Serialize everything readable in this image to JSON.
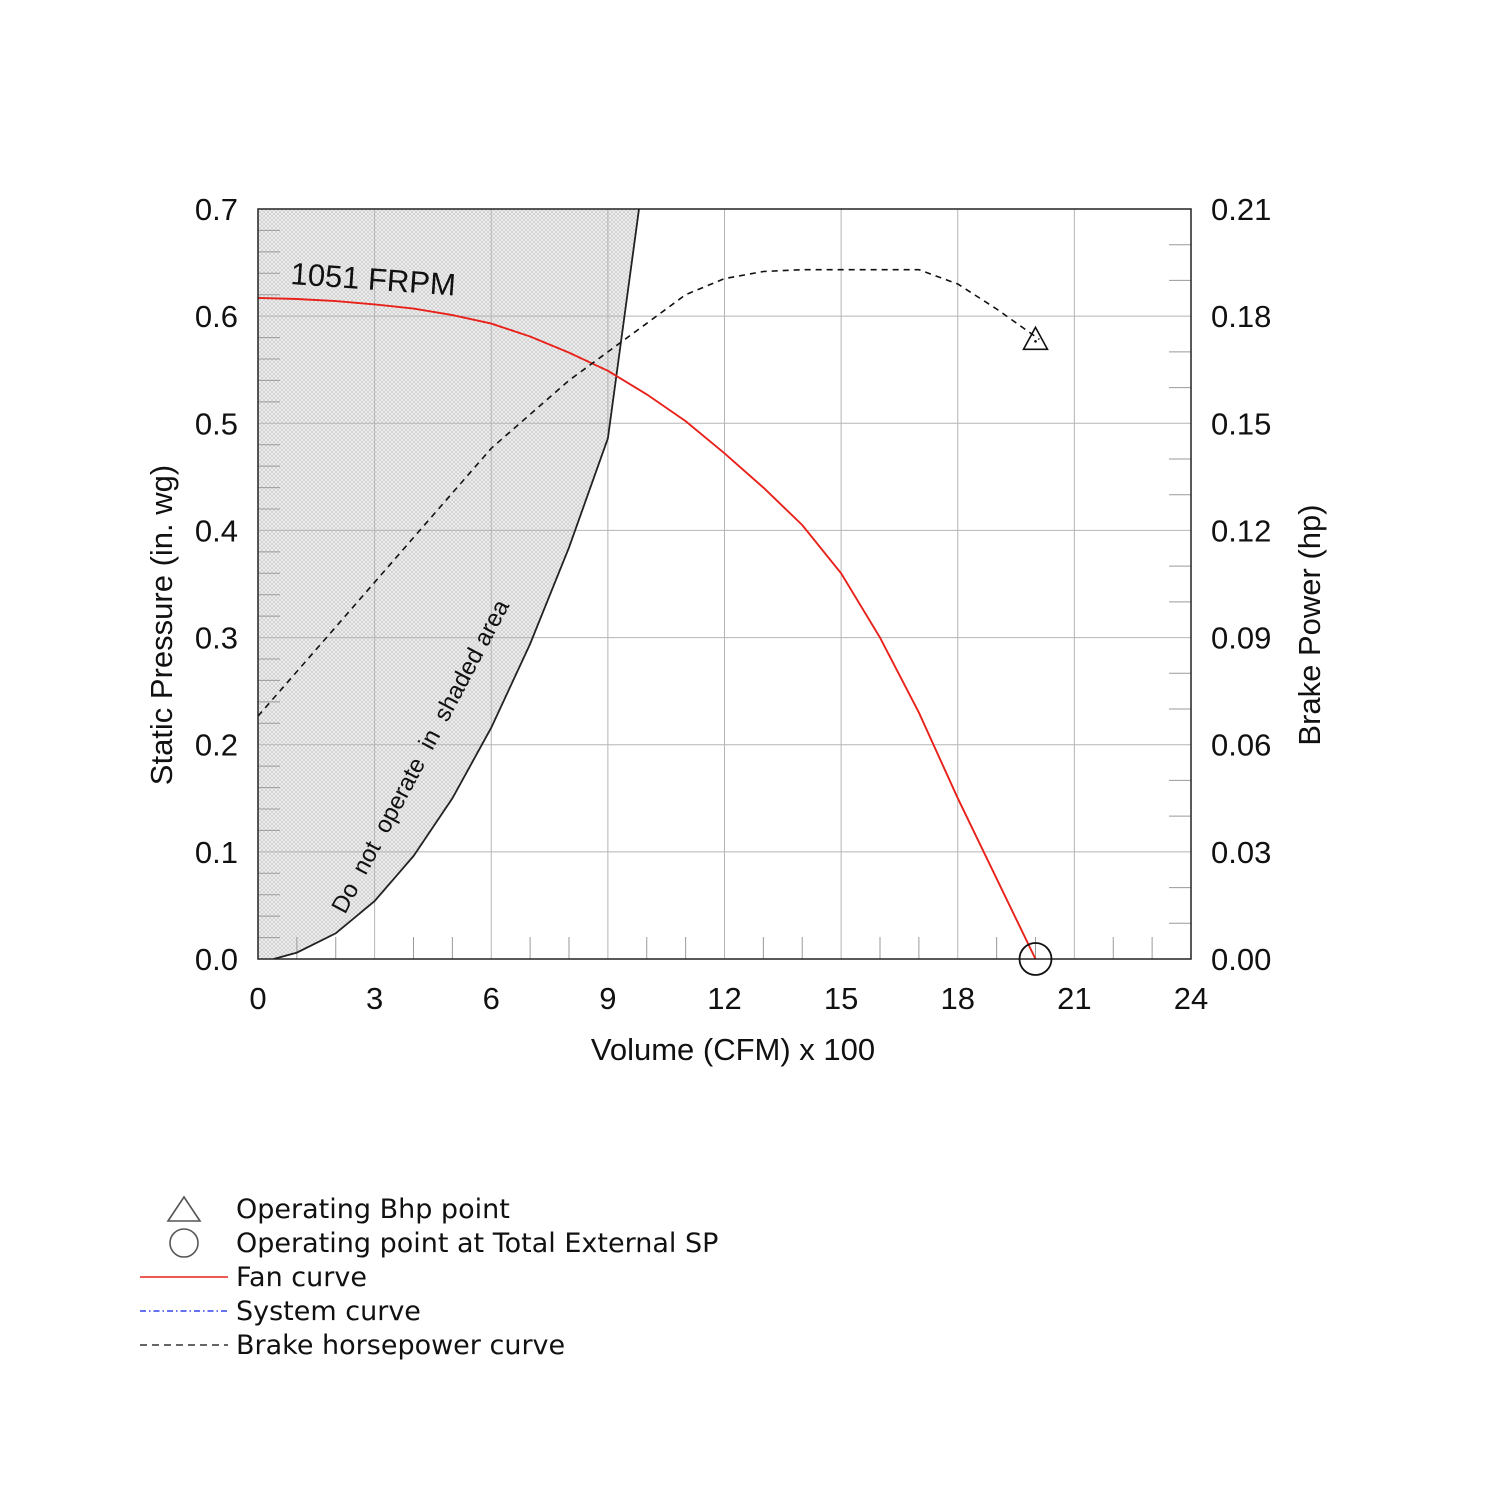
{
  "chart_data": {
    "type": "line",
    "curve_label": "1051 FRPM",
    "region_label": "Do  not  operate  in  shaded area",
    "x_axis": {
      "label": "Volume (CFM) x 100",
      "min": 0,
      "max": 24,
      "ticks": [
        "0",
        "3",
        "6",
        "9",
        "12",
        "15",
        "18",
        "21",
        "24"
      ]
    },
    "y_axis_left": {
      "label": "Static Pressure (in. wg)",
      "min": 0,
      "max": 0.7,
      "ticks": [
        "0.0",
        "0.1",
        "0.2",
        "0.3",
        "0.4",
        "0.5",
        "0.6",
        "0.7"
      ]
    },
    "y_axis_right": {
      "label": "Brake Power (hp)",
      "min": 0,
      "max": 0.21,
      "ticks": [
        "0.00",
        "0.03",
        "0.06",
        "0.09",
        "0.12",
        "0.15",
        "0.18",
        "0.21"
      ]
    },
    "grid": true,
    "series": [
      {
        "name": "Fan curve",
        "axis": "left",
        "color": "#e8221b",
        "style": "solid",
        "points": [
          [
            0,
            0.617
          ],
          [
            1,
            0.616
          ],
          [
            2,
            0.614
          ],
          [
            3,
            0.611
          ],
          [
            4,
            0.607
          ],
          [
            5,
            0.601
          ],
          [
            6,
            0.593
          ],
          [
            7,
            0.581
          ],
          [
            8,
            0.566
          ],
          [
            9,
            0.549
          ],
          [
            10,
            0.527
          ],
          [
            11,
            0.502
          ],
          [
            12,
            0.472
          ],
          [
            13,
            0.44
          ],
          [
            14,
            0.405
          ],
          [
            15,
            0.36
          ],
          [
            16,
            0.3
          ],
          [
            17,
            0.23
          ],
          [
            18,
            0.15
          ],
          [
            19,
            0.075
          ],
          [
            20,
            0.0
          ]
        ]
      },
      {
        "name": "Brake horsepower curve",
        "axis": "right",
        "color": "#111111",
        "style": "dashed",
        "points": [
          [
            0,
            0.068
          ],
          [
            2,
            0.093
          ],
          [
            4,
            0.118
          ],
          [
            6,
            0.143
          ],
          [
            8,
            0.162
          ],
          [
            10,
            0.178
          ],
          [
            11,
            0.186
          ],
          [
            12,
            0.1905
          ],
          [
            13,
            0.1925
          ],
          [
            14,
            0.193
          ],
          [
            16,
            0.193
          ],
          [
            17,
            0.193
          ],
          [
            18,
            0.189
          ],
          [
            19,
            0.182
          ],
          [
            20.1,
            0.1735
          ]
        ]
      },
      {
        "name": "System curve",
        "axis": "left",
        "color": "#3344ee",
        "style": "dash-dot",
        "points": []
      }
    ],
    "shaded_region_boundary": [
      [
        0.4,
        0.0
      ],
      [
        1,
        0.006
      ],
      [
        2,
        0.024
      ],
      [
        3,
        0.054
      ],
      [
        4,
        0.096
      ],
      [
        5,
        0.15
      ],
      [
        6,
        0.216
      ],
      [
        7,
        0.294
      ],
      [
        8,
        0.384
      ],
      [
        9,
        0.486
      ],
      [
        9.8,
        0.7
      ]
    ],
    "markers": [
      {
        "name": "Operating Bhp point",
        "shape": "triangle",
        "axis": "right",
        "x": 20.0,
        "y": 0.1735
      },
      {
        "name": "Operating point at Total External SP",
        "shape": "circle",
        "axis": "left",
        "x": 20.0,
        "y": 0.0
      }
    ]
  },
  "legend": [
    {
      "key": "triangle",
      "label": "Operating Bhp point",
      "color": "#555555"
    },
    {
      "key": "circle",
      "label": "Operating point at Total External SP",
      "color": "#555555"
    },
    {
      "key": "solid",
      "label": "Fan curve",
      "color": "#e8221b"
    },
    {
      "key": "dashdot",
      "label": "System curve",
      "color": "#3344ee"
    },
    {
      "key": "dashed",
      "label": "Brake horsepower curve",
      "color": "#333333"
    }
  ]
}
